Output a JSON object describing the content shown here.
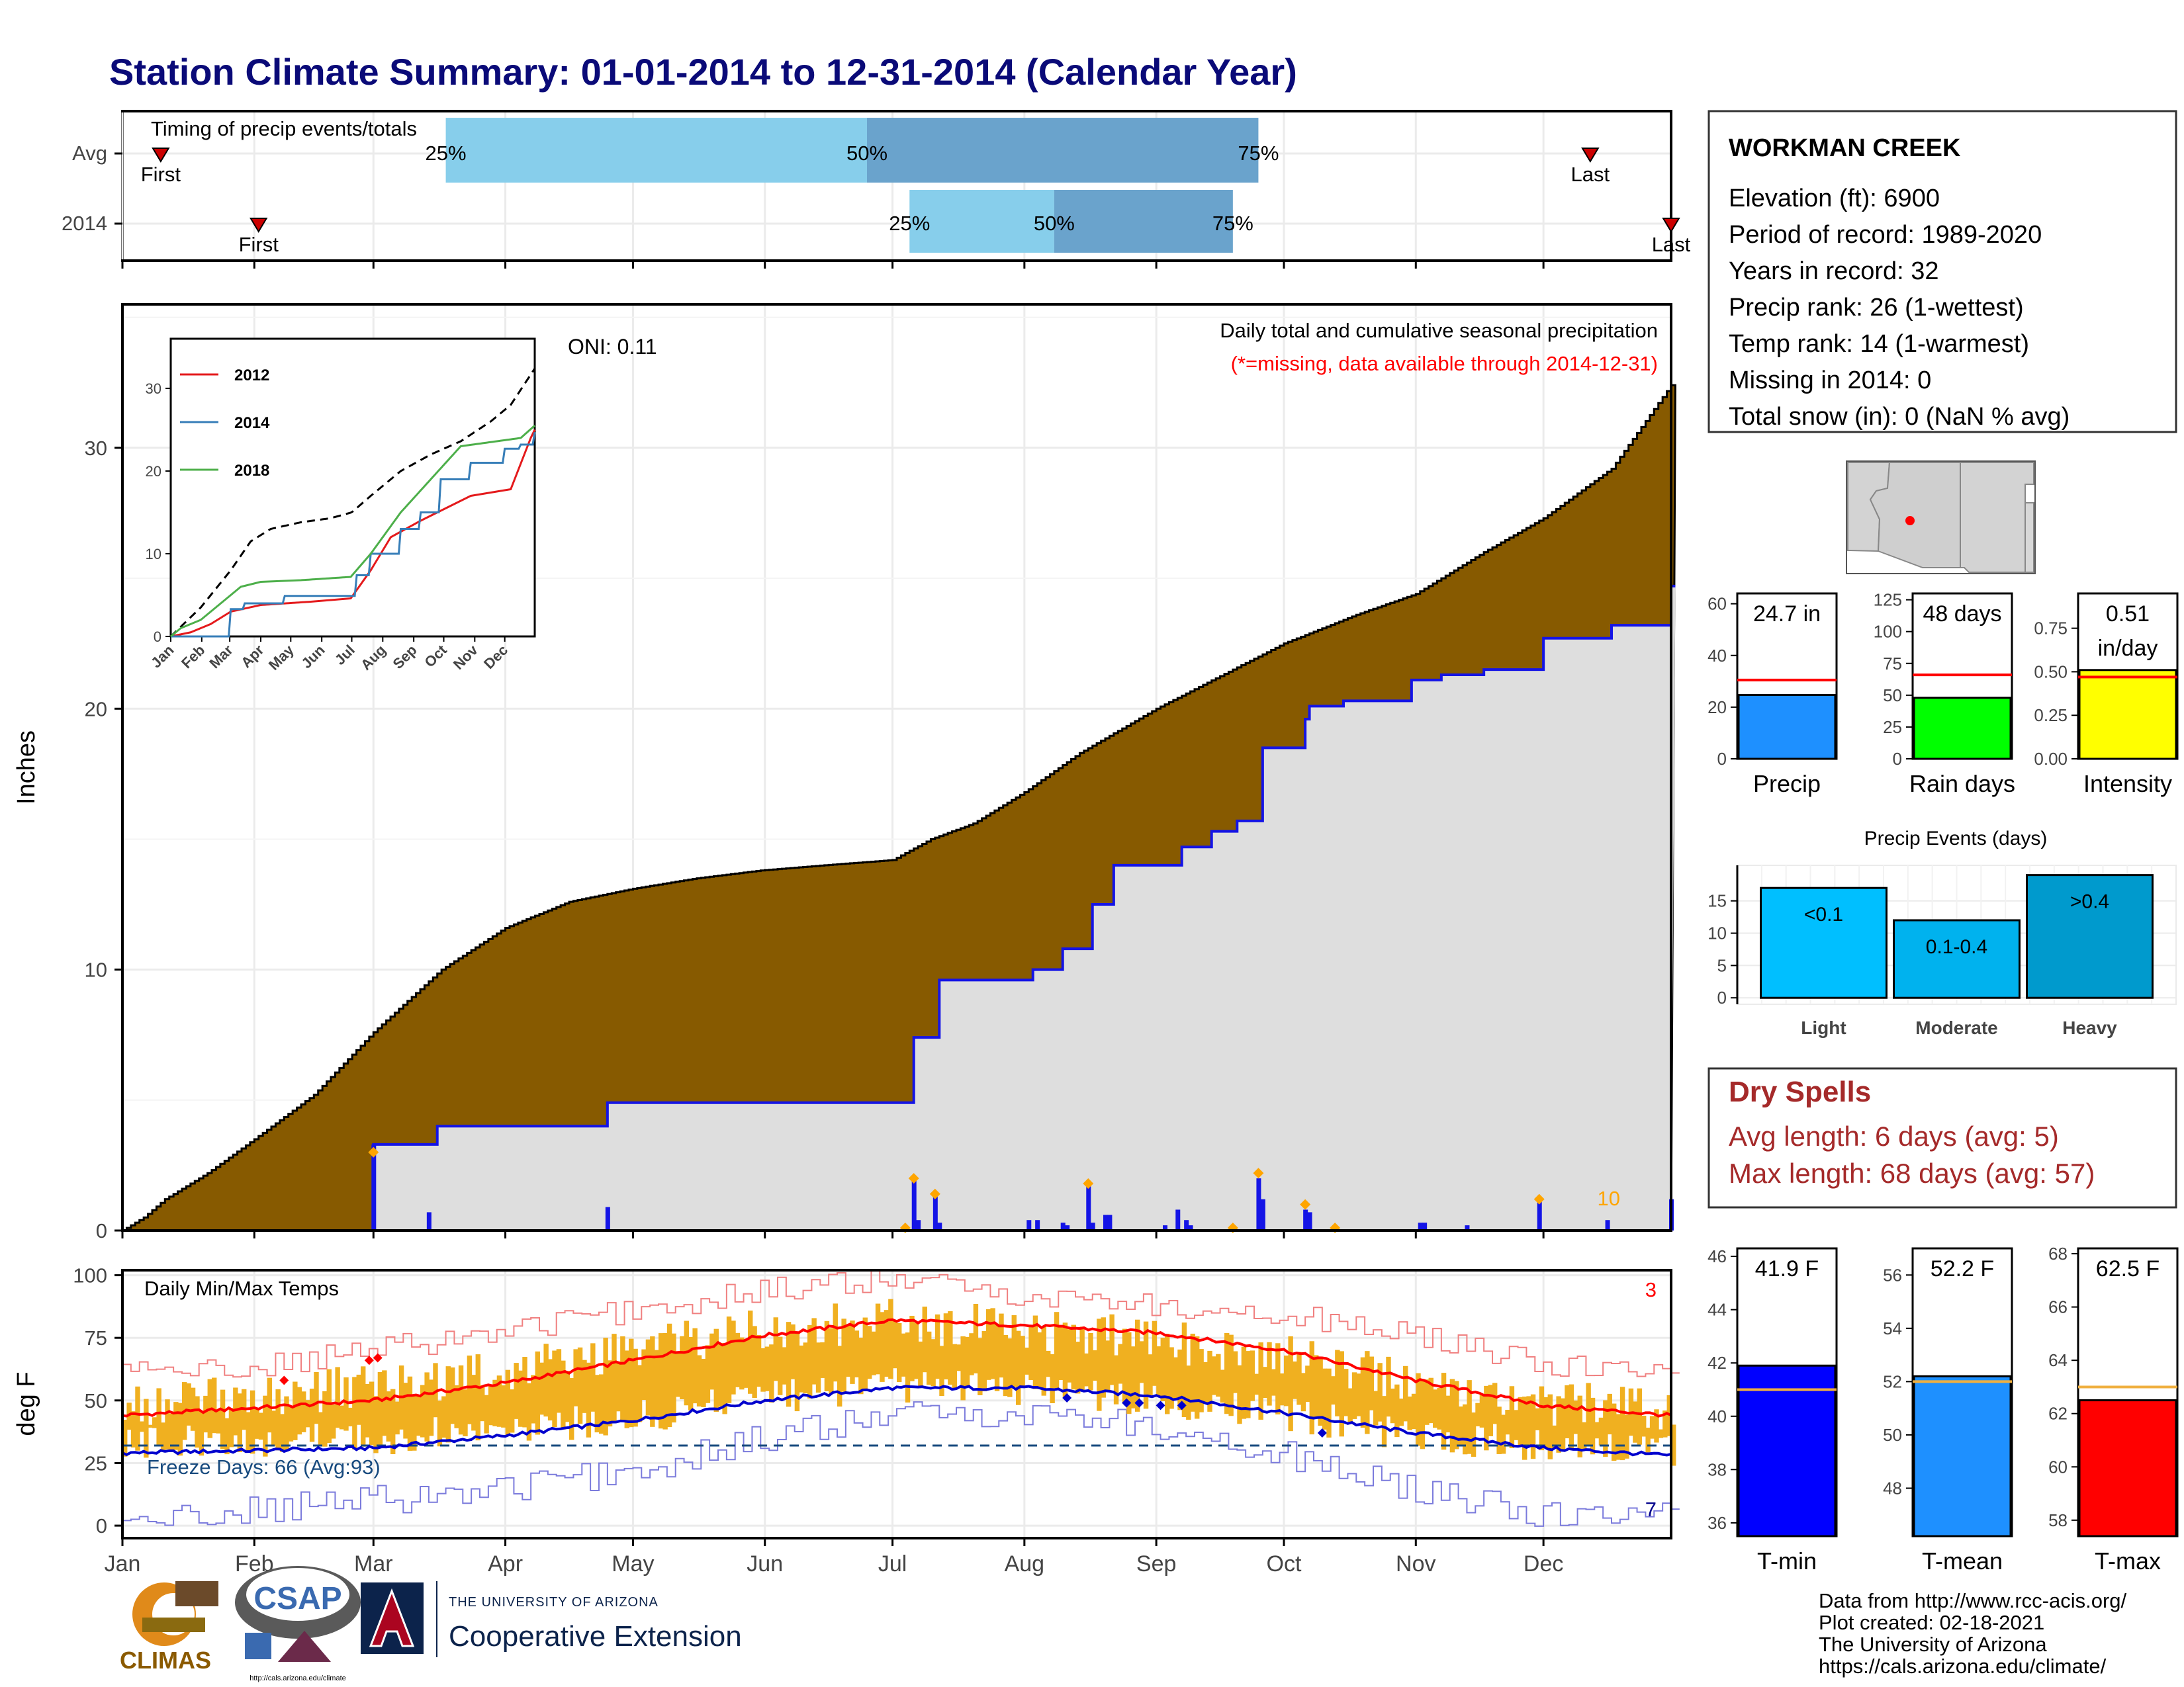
{
  "title": "Station Climate Summary: 01-01-2014 to 12-31-2014 (Calendar Year)",
  "colors": {
    "title": "#0a0a78",
    "cum_fill": "#875a00",
    "cur_fill": "#dedede",
    "cur_line": "#1414e6",
    "bar_blue": "#1414e6",
    "marker_orange": "#ffa500",
    "light_blue": "#87ceeb",
    "steel_blue": "#6aa3cc",
    "precip_bar": "#1e90ff",
    "rain_bar": "#00ff00",
    "int_bar": "#ffff00",
    "ev_light": "#00bfff",
    "ev_mod": "#00b2ee",
    "ev_heavy": "#009acd",
    "dry_text": "#a52a2a",
    "tmin": "#0000ff",
    "tmean": "#1e90ff",
    "tmax": "#ff0000",
    "temp_band": "#f0b020",
    "avg_line": "#f0b040"
  },
  "timing": {
    "label": "Timing of precip events/totals",
    "rows": [
      {
        "name": "Avg",
        "first": "First",
        "last": "Last",
        "p25": "25%",
        "p50": "50%",
        "p75": "75%",
        "first_doy": 9,
        "last_doy": 345,
        "p25_doy": 76,
        "p50_doy": 175,
        "p75_doy": 267
      },
      {
        "name": "2014",
        "first": "First",
        "last": "Last",
        "p25": "25%",
        "p50": "50%",
        "p75": "75%",
        "first_doy": 32,
        "last_doy": 364,
        "p25_doy": 185,
        "p50_doy": 219,
        "p75_doy": 261
      }
    ]
  },
  "main": {
    "ylabel": "Inches",
    "caption1": "Daily total and cumulative seasonal precipitation",
    "caption2": "(*=missing, data available through 2014-12-31)",
    "oni": "ONI: 0.11",
    "corner_value": "10",
    "months": [
      "Jan",
      "Feb",
      "Mar",
      "Apr",
      "May",
      "Jun",
      "Jul",
      "Aug",
      "Sep",
      "Oct",
      "Nov",
      "Dec"
    ]
  },
  "chart_data": [
    {
      "type": "area",
      "ylim": [
        0,
        35.5
      ],
      "yticks": [
        "0",
        "10",
        "20",
        "30"
      ],
      "avg_cumulative": [
        [
          0,
          0
        ],
        [
          5,
          0.5
        ],
        [
          10,
          1.2
        ],
        [
          20,
          2.2
        ],
        [
          31,
          3.5
        ],
        [
          45,
          5.2
        ],
        [
          59,
          7.6
        ],
        [
          75,
          10.0
        ],
        [
          90,
          11.6
        ],
        [
          105,
          12.6
        ],
        [
          120,
          13.1
        ],
        [
          135,
          13.5
        ],
        [
          150,
          13.8
        ],
        [
          165,
          14.0
        ],
        [
          181,
          14.2
        ],
        [
          190,
          15.0
        ],
        [
          200,
          15.6
        ],
        [
          212,
          16.8
        ],
        [
          225,
          18.3
        ],
        [
          243,
          20.0
        ],
        [
          255,
          21.0
        ],
        [
          273,
          22.5
        ],
        [
          290,
          23.6
        ],
        [
          304,
          24.4
        ],
        [
          320,
          26.0
        ],
        [
          334,
          27.3
        ],
        [
          350,
          29.2
        ],
        [
          364,
          32.4
        ]
      ],
      "current_2014": [
        [
          0,
          0
        ],
        [
          58,
          0
        ],
        [
          59,
          3.3
        ],
        [
          73,
          3.3
        ],
        [
          74,
          4.0
        ],
        [
          113,
          4.0
        ],
        [
          114,
          4.9
        ],
        [
          185,
          4.9
        ],
        [
          186,
          7.4
        ],
        [
          191,
          7.4
        ],
        [
          192,
          9.6
        ],
        [
          213,
          9.6
        ],
        [
          214,
          10.0
        ],
        [
          220,
          10.0
        ],
        [
          221,
          10.8
        ],
        [
          227,
          10.8
        ],
        [
          228,
          12.5
        ],
        [
          232,
          12.5
        ],
        [
          233,
          14.0
        ],
        [
          248,
          14.0
        ],
        [
          249,
          14.7
        ],
        [
          255,
          14.7
        ],
        [
          256,
          15.3
        ],
        [
          261,
          15.3
        ],
        [
          262,
          15.7
        ],
        [
          267,
          15.7
        ],
        [
          268,
          18.5
        ],
        [
          277,
          18.5
        ],
        [
          278,
          19.6
        ],
        [
          279,
          20.1
        ],
        [
          287,
          20.3
        ],
        [
          300,
          20.3
        ],
        [
          303,
          21.1
        ],
        [
          310,
          21.3
        ],
        [
          320,
          21.5
        ],
        [
          333,
          21.5
        ],
        [
          334,
          22.7
        ],
        [
          349,
          22.7
        ],
        [
          350,
          23.2
        ],
        [
          363,
          23.2
        ],
        [
          364,
          24.7
        ]
      ],
      "daily_bars": [
        [
          59,
          3.3
        ],
        [
          72,
          0.7
        ],
        [
          114,
          0.9
        ],
        [
          186,
          2.0
        ],
        [
          187,
          0.4
        ],
        [
          191,
          1.4
        ],
        [
          192,
          0.3
        ],
        [
          213,
          0.4
        ],
        [
          215,
          0.4
        ],
        [
          221,
          0.3
        ],
        [
          222,
          0.2
        ],
        [
          227,
          1.8
        ],
        [
          228,
          0.3
        ],
        [
          231,
          0.6
        ],
        [
          232,
          0.6
        ],
        [
          245,
          0.2
        ],
        [
          248,
          0.8
        ],
        [
          250,
          0.4
        ],
        [
          251,
          0.2
        ],
        [
          261,
          0.1
        ],
        [
          267,
          2.0
        ],
        [
          268,
          1.2
        ],
        [
          278,
          0.8
        ],
        [
          279,
          0.7
        ],
        [
          285,
          0.1
        ],
        [
          305,
          0.3
        ],
        [
          306,
          0.3
        ],
        [
          316,
          0.2
        ],
        [
          333,
          1.1
        ],
        [
          349,
          0.4
        ],
        [
          364,
          1.2
        ]
      ],
      "missing_markers": [
        [
          59,
          3
        ],
        [
          186,
          2
        ],
        [
          191,
          1.4
        ],
        [
          227,
          1.8
        ],
        [
          267,
          2.2
        ],
        [
          278,
          1.0
        ],
        [
          285,
          0.1
        ],
        [
          333,
          1.2
        ],
        [
          261,
          0.1
        ],
        [
          184,
          0.1
        ]
      ]
    },
    {
      "type": "line",
      "legend": [
        {
          "name": "2012",
          "color": "#e41a1c"
        },
        {
          "name": "2014",
          "color": "#377eb8"
        },
        {
          "name": "2018",
          "color": "#4daf4a"
        }
      ],
      "ylim": [
        0,
        36
      ],
      "yticks": [
        "0",
        "10",
        "20",
        "30"
      ],
      "xticks": [
        "Jan",
        "Feb",
        "Mar",
        "Apr",
        "May",
        "Jun",
        "Jul",
        "Aug",
        "Sep",
        "Oct",
        "Nov",
        "Dec"
      ],
      "avg": [
        [
          0,
          0
        ],
        [
          30,
          3.5
        ],
        [
          60,
          8
        ],
        [
          80,
          11.5
        ],
        [
          100,
          13
        ],
        [
          130,
          13.8
        ],
        [
          160,
          14.3
        ],
        [
          181,
          15
        ],
        [
          200,
          17
        ],
        [
          230,
          20
        ],
        [
          260,
          22
        ],
        [
          290,
          23.6
        ],
        [
          320,
          26
        ],
        [
          340,
          28
        ],
        [
          364,
          32.4
        ]
      ],
      "series_2012": [
        [
          0,
          0
        ],
        [
          20,
          0.5
        ],
        [
          40,
          1.5
        ],
        [
          60,
          3
        ],
        [
          90,
          3.8
        ],
        [
          140,
          4.2
        ],
        [
          180,
          4.6
        ],
        [
          200,
          8
        ],
        [
          220,
          12
        ],
        [
          250,
          14
        ],
        [
          270,
          15.2
        ],
        [
          300,
          17
        ],
        [
          340,
          17.8
        ],
        [
          360,
          24
        ],
        [
          364,
          25
        ]
      ],
      "series_2014": [
        [
          0,
          0
        ],
        [
          58,
          0
        ],
        [
          59,
          3.3
        ],
        [
          74,
          4.0
        ],
        [
          114,
          4.9
        ],
        [
          186,
          7.4
        ],
        [
          200,
          10
        ],
        [
          230,
          13
        ],
        [
          250,
          15
        ],
        [
          270,
          19
        ],
        [
          300,
          21
        ],
        [
          333,
          22.7
        ],
        [
          350,
          23.2
        ],
        [
          364,
          24.7
        ]
      ],
      "series_2018": [
        [
          0,
          0
        ],
        [
          10,
          1
        ],
        [
          30,
          2
        ],
        [
          50,
          4
        ],
        [
          70,
          6
        ],
        [
          90,
          6.6
        ],
        [
          130,
          6.8
        ],
        [
          180,
          7.2
        ],
        [
          200,
          10
        ],
        [
          230,
          15
        ],
        [
          260,
          19
        ],
        [
          290,
          23
        ],
        [
          320,
          23.5
        ],
        [
          350,
          24
        ],
        [
          364,
          25.5
        ]
      ]
    },
    {
      "type": "line",
      "title": "Daily Min/Max Temps",
      "ylabel": "deg F",
      "ylim": [
        -5,
        102
      ],
      "yticks": [
        "0",
        "25",
        "50",
        "75",
        "100"
      ],
      "freeze_text": "Freeze Days: 66 (Avg:93)",
      "freeze_line": 32,
      "count_hot": "3",
      "count_cold": "7",
      "avg_max": [
        [
          0,
          44
        ],
        [
          31,
          47
        ],
        [
          59,
          50
        ],
        [
          90,
          57
        ],
        [
          120,
          66
        ],
        [
          151,
          76
        ],
        [
          181,
          82
        ],
        [
          212,
          80
        ],
        [
          243,
          77
        ],
        [
          273,
          70
        ],
        [
          304,
          58
        ],
        [
          334,
          48
        ],
        [
          364,
          44
        ]
      ],
      "avg_min": [
        [
          0,
          29
        ],
        [
          31,
          30
        ],
        [
          59,
          31
        ],
        [
          90,
          36
        ],
        [
          120,
          42
        ],
        [
          151,
          50
        ],
        [
          181,
          55
        ],
        [
          212,
          55
        ],
        [
          243,
          52
        ],
        [
          273,
          45
        ],
        [
          304,
          37
        ],
        [
          334,
          31
        ],
        [
          364,
          28
        ]
      ],
      "band_max": [
        [
          0,
          48
        ],
        [
          31,
          52
        ],
        [
          59,
          56
        ],
        [
          90,
          61
        ],
        [
          120,
          70
        ],
        [
          151,
          78
        ],
        [
          181,
          82
        ],
        [
          212,
          78
        ],
        [
          243,
          74
        ],
        [
          273,
          68
        ],
        [
          304,
          58
        ],
        [
          334,
          49
        ],
        [
          364,
          46
        ]
      ],
      "band_min": [
        [
          0,
          32
        ],
        [
          31,
          34
        ],
        [
          59,
          35
        ],
        [
          90,
          38
        ],
        [
          120,
          43
        ],
        [
          151,
          51
        ],
        [
          181,
          56
        ],
        [
          212,
          54
        ],
        [
          243,
          50
        ],
        [
          273,
          45
        ],
        [
          304,
          36
        ],
        [
          334,
          32
        ],
        [
          364,
          30
        ]
      ],
      "record_max": [
        [
          0,
          62
        ],
        [
          31,
          63
        ],
        [
          59,
          70
        ],
        [
          90,
          78
        ],
        [
          120,
          86
        ],
        [
          151,
          94
        ],
        [
          181,
          98
        ],
        [
          212,
          92
        ],
        [
          243,
          88
        ],
        [
          273,
          84
        ],
        [
          304,
          76
        ],
        [
          334,
          64
        ],
        [
          364,
          62
        ]
      ],
      "record_min": [
        [
          0,
          2
        ],
        [
          31,
          6
        ],
        [
          59,
          10
        ],
        [
          90,
          15
        ],
        [
          120,
          22
        ],
        [
          151,
          35
        ],
        [
          181,
          44
        ],
        [
          212,
          45
        ],
        [
          243,
          40
        ],
        [
          273,
          28
        ],
        [
          304,
          14
        ],
        [
          334,
          4
        ],
        [
          364,
          5
        ]
      ],
      "months": [
        "Jan",
        "Feb",
        "Mar",
        "Apr",
        "May",
        "Jun",
        "Jul",
        "Aug",
        "Sep",
        "Oct",
        "Nov",
        "Dec"
      ]
    },
    {
      "type": "bar",
      "title": "Precip",
      "value_label": "24.7 in",
      "value": 24.7,
      "avg": 30.5,
      "ylim": [
        0,
        64
      ],
      "yticks": [
        "0",
        "20",
        "40",
        "60"
      ]
    },
    {
      "type": "bar",
      "title": "Rain days",
      "value_label": "48 days",
      "value": 48,
      "avg": 66,
      "ylim": [
        0,
        130
      ],
      "yticks": [
        "0",
        "25",
        "50",
        "75",
        "100",
        "125"
      ]
    },
    {
      "type": "bar",
      "title": "Intensity",
      "value_label": "0.51",
      "value_label2": "in/day",
      "value": 0.51,
      "avg": 0.47,
      "ylim": [
        0,
        0.95
      ],
      "yticks": [
        "0.00",
        "0.25",
        "0.50",
        "0.75"
      ]
    },
    {
      "type": "bar",
      "title": "Precip Events (days)",
      "categories": [
        "Light",
        "Moderate",
        "Heavy"
      ],
      "labels": [
        "<0.1",
        "0.1-0.4",
        ">0.4"
      ],
      "values": [
        17,
        12,
        19
      ],
      "ylim": [
        -1,
        20.5
      ],
      "yticks": [
        "0",
        "5",
        "10",
        "15"
      ]
    },
    {
      "type": "bar",
      "title": "T-min",
      "value_label": "41.9 F",
      "value": 41.9,
      "avg": 41.0,
      "ylim": [
        35.5,
        46.3
      ],
      "yticks": [
        "36",
        "38",
        "40",
        "42",
        "44",
        "46"
      ]
    },
    {
      "type": "bar",
      "title": "T-mean",
      "value_label": "52.2 F",
      "value": 52.2,
      "avg": 52.0,
      "ylim": [
        46.2,
        57.0
      ],
      "yticks": [
        "48",
        "50",
        "52",
        "54",
        "56"
      ]
    },
    {
      "type": "bar",
      "title": "T-max",
      "value_label": "62.5 F",
      "value": 62.5,
      "avg": 63.0,
      "ylim": [
        57.4,
        68.2
      ],
      "yticks": [
        "58",
        "60",
        "62",
        "64",
        "66",
        "68"
      ]
    }
  ],
  "station": {
    "name": "WORKMAN CREEK",
    "lines": [
      "Elevation (ft): 6900",
      "Period of record: 1989-2020",
      "Years in record: 32",
      "Precip rank: 26 (1-wettest)",
      "Temp rank: 14 (1-warmest)",
      "Missing in 2014: 0",
      "Total snow (in): 0 (NaN % avg)"
    ]
  },
  "dry_spells": {
    "title": "Dry Spells",
    "avg": "Avg length: 6 days (avg: 5)",
    "max": "Max length: 68 days (avg: 57)"
  },
  "footer": {
    "lines": [
      "Data from http://www.rcc-acis.org/",
      "Plot created: 02-18-2021",
      "The University of Arizona",
      "https://cals.arizona.edu/climate/"
    ],
    "climas": "CLIMAS",
    "csap": "CSAP",
    "csap_url": "http://cals.arizona.edu/climate",
    "ua_top": "THE UNIVERSITY OF ARIZONA",
    "ua_main": "Cooperative Extension"
  }
}
